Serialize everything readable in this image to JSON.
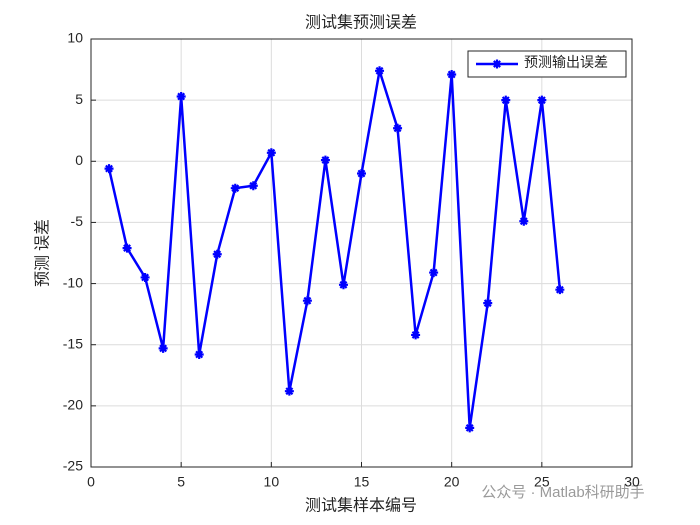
{
  "chart_data": {
    "type": "line",
    "title": "测试集预测误差",
    "xlabel": "测试集样本编号",
    "ylabel": "预测 误差",
    "x": [
      1,
      2,
      3,
      4,
      5,
      6,
      7,
      8,
      9,
      10,
      11,
      12,
      13,
      14,
      15,
      16,
      17,
      18,
      19,
      20,
      21,
      22,
      23,
      24,
      25,
      26
    ],
    "series": [
      {
        "name": "预测输出误差",
        "color": "#0000ff",
        "values": [
          -0.6,
          -7.1,
          -9.5,
          -15.3,
          5.3,
          -15.8,
          -7.6,
          -2.2,
          -2.0,
          0.7,
          -18.8,
          -11.4,
          0.1,
          -10.1,
          -1.0,
          7.4,
          2.7,
          -14.2,
          -9.1,
          7.1,
          -21.8,
          -11.6,
          5.0,
          -4.9,
          5.0,
          -10.5
        ]
      }
    ],
    "xlim": [
      0,
      30
    ],
    "xticks": [
      0,
      5,
      10,
      15,
      20,
      25,
      30
    ],
    "ylim": [
      -25,
      10
    ],
    "yticks": [
      -25,
      -20,
      -15,
      -10,
      -5,
      0,
      5,
      10
    ],
    "grid": true,
    "legend": "northeast",
    "watermark": "公众号 · Matlab科研助手"
  }
}
